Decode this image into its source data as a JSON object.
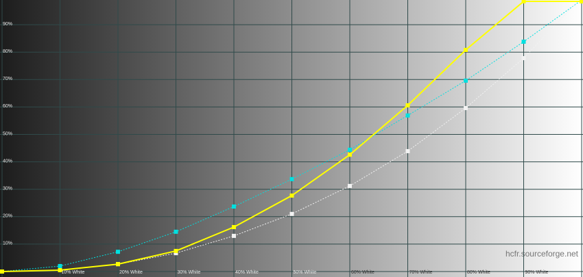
{
  "chart_data": {
    "type": "line",
    "x": [
      0,
      10,
      20,
      30,
      40,
      50,
      60,
      70,
      80,
      90,
      100
    ],
    "xlim": [
      0,
      100
    ],
    "xticks": [
      {
        "value": 10,
        "label": "10% White"
      },
      {
        "value": 20,
        "label": "20% White"
      },
      {
        "value": 30,
        "label": "30% White"
      },
      {
        "value": 40,
        "label": "40% White"
      },
      {
        "value": 50,
        "label": "50% White"
      },
      {
        "value": 60,
        "label": "60% White"
      },
      {
        "value": 70,
        "label": "70% White"
      },
      {
        "value": 80,
        "label": "80% White"
      },
      {
        "value": 90,
        "label": "90% White"
      }
    ],
    "ylim": [
      0,
      99
    ],
    "yticks": [
      {
        "value": 10,
        "label": "10%"
      },
      {
        "value": 20,
        "label": "20%"
      },
      {
        "value": 30,
        "label": "30%"
      },
      {
        "value": 40,
        "label": "40%"
      },
      {
        "value": 50,
        "label": "50%"
      },
      {
        "value": 60,
        "label": "60%"
      },
      {
        "value": 70,
        "label": "70%"
      },
      {
        "value": 80,
        "label": "80%"
      },
      {
        "value": 90,
        "label": "90%"
      }
    ],
    "grid": true,
    "series": [
      {
        "color": "#00e0e0",
        "dashed": true,
        "values": [
          0,
          2,
          7.2,
          14.5,
          23.7,
          33.7,
          44.4,
          56.9,
          69.6,
          83.8,
          99
        ]
      },
      {
        "color": "#f2f2f2",
        "dashed": true,
        "values": [
          0,
          0.5,
          2.7,
          6.7,
          13,
          21,
          31.2,
          43.9,
          59.6,
          77.8,
          100
        ]
      },
      {
        "color": "#ffff00",
        "dashed": false,
        "values": [
          0,
          0.5,
          2.7,
          7.5,
          16.2,
          27.7,
          42.6,
          60.6,
          80.8,
          98.5,
          98.5
        ]
      }
    ],
    "annotation": "hcfr.sourceforge.net"
  }
}
